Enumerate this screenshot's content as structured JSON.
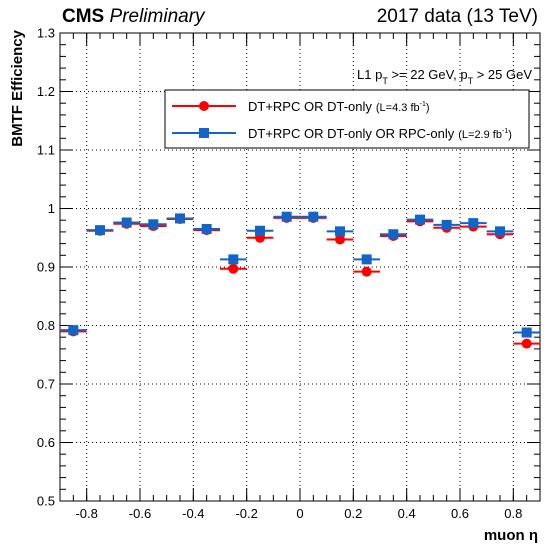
{
  "header": {
    "experiment": "CMS",
    "status": "Preliminary",
    "dataset": "2017 data (13 TeV)"
  },
  "cut_text": {
    "prefix": "L1 p",
    "sub1": "T",
    "middle": " >= 22 GeV, p",
    "sub2": "T",
    "suffix": " > 25 GeV"
  },
  "chart_data": {
    "type": "scatter",
    "xlabel": "muon η",
    "ylabel": "BMTF Efficiency",
    "xlim": [
      -0.9,
      0.9
    ],
    "ylim": [
      0.5,
      1.3
    ],
    "xticks": [
      -0.8,
      -0.6,
      -0.4,
      -0.2,
      0,
      0.2,
      0.4,
      0.6,
      0.8
    ],
    "yticks": [
      0.5,
      0.6,
      0.7,
      0.8,
      0.9,
      1,
      1.1,
      1.2,
      1.3
    ],
    "grid": true,
    "legend_position": "upper-right",
    "x": [
      -0.85,
      -0.75,
      -0.65,
      -0.55,
      -0.45,
      -0.35,
      -0.25,
      -0.15,
      -0.05,
      0.05,
      0.15,
      0.25,
      0.35,
      0.45,
      0.55,
      0.65,
      0.75,
      0.85
    ],
    "x_bin_halfwidth": 0.05,
    "series": [
      {
        "name": "DT+RPC OR DT-only",
        "lumi": "(L=4.3 fb",
        "lumi_exp": "-1",
        "lumi_close": ")",
        "color": "#ff0000",
        "marker": "circle",
        "values": [
          0.79,
          0.962,
          0.974,
          0.97,
          0.982,
          0.963,
          0.897,
          0.95,
          0.984,
          0.984,
          0.947,
          0.892,
          0.953,
          0.978,
          0.967,
          0.969,
          0.956,
          0.769
        ]
      },
      {
        "name": "DT+RPC OR DT-only OR RPC-only",
        "lumi": "(L=2.9 fb",
        "lumi_exp": "-1",
        "lumi_close": ")",
        "color": "#1464c8",
        "marker": "square",
        "values": [
          0.792,
          0.963,
          0.976,
          0.973,
          0.983,
          0.965,
          0.913,
          0.962,
          0.986,
          0.986,
          0.961,
          0.913,
          0.956,
          0.981,
          0.972,
          0.975,
          0.961,
          0.788
        ]
      }
    ]
  }
}
